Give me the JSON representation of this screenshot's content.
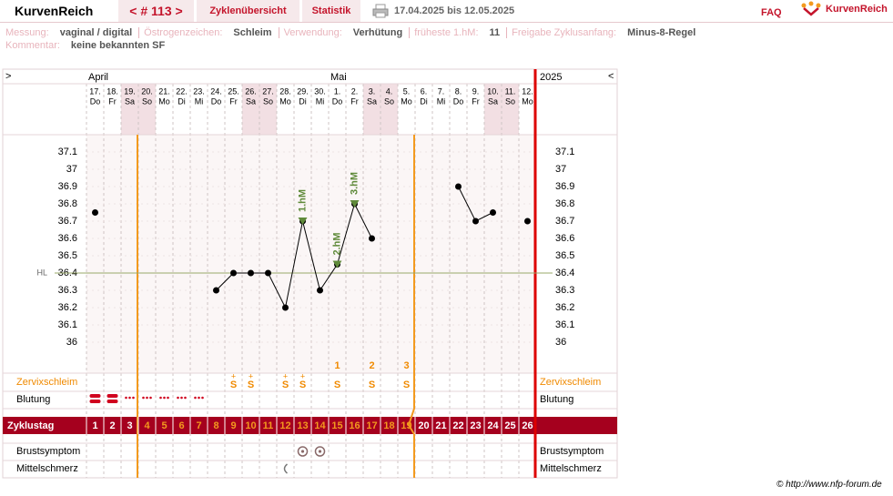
{
  "header": {
    "brand": "KurvenReich",
    "cycle_nav": "< # 113 >",
    "tabs": [
      "Zyklenübersicht",
      "Statistik"
    ],
    "date_range": "17.04.2025 bis 12.05.2025",
    "faq": "FAQ",
    "logo": "KurvenReich"
  },
  "info": {
    "items": [
      {
        "label": "Messung:",
        "value": "vaginal / digital"
      },
      {
        "label": "Östrogenzeichen:",
        "value": "Schleim"
      },
      {
        "label": "Verwendung:",
        "value": "Verhütung"
      },
      {
        "label": "früheste 1.hM:",
        "value": "11"
      },
      {
        "label": "Freigabe Zyklusanfang:",
        "value": "Minus-8-Regel"
      }
    ],
    "comment_label": "Kommentar:",
    "comment": "keine bekannten SF"
  },
  "chart_data": {
    "type": "line",
    "nav_left": ">",
    "nav_right": "<",
    "year": "2025",
    "months": [
      "April",
      null,
      null,
      null,
      null,
      null,
      null,
      null,
      null,
      null,
      null,
      null,
      null,
      null,
      "Mai",
      null,
      null,
      null,
      null,
      null,
      null,
      null,
      null,
      null,
      null,
      null
    ],
    "categories": [
      "17.",
      "18.",
      "19.",
      "20.",
      "21.",
      "22.",
      "23.",
      "24.",
      "25.",
      "26.",
      "27.",
      "28.",
      "29.",
      "30.",
      "1.",
      "2.",
      "3.",
      "4.",
      "5.",
      "6.",
      "7.",
      "8.",
      "9.",
      "10.",
      "11.",
      "12."
    ],
    "weekdays": [
      "Do",
      "Fr",
      "Sa",
      "So",
      "Mo",
      "Di",
      "Mi",
      "Do",
      "Fr",
      "Sa",
      "So",
      "Mo",
      "Di",
      "Mi",
      "Do",
      "Fr",
      "Sa",
      "So",
      "Mo",
      "Di",
      "Mi",
      "Do",
      "Fr",
      "Sa",
      "So",
      "Mo"
    ],
    "weekend": [
      false,
      false,
      true,
      true,
      false,
      false,
      false,
      false,
      false,
      true,
      true,
      false,
      false,
      false,
      false,
      false,
      true,
      true,
      false,
      false,
      false,
      false,
      false,
      true,
      true,
      false
    ],
    "values": [
      36.75,
      null,
      null,
      null,
      null,
      null,
      null,
      36.3,
      36.4,
      36.4,
      36.4,
      36.2,
      36.7,
      36.3,
      36.45,
      36.8,
      36.6,
      null,
      null,
      null,
      null,
      36.9,
      36.7,
      36.75,
      null,
      36.7
    ],
    "color": "#000000",
    "ylim": [
      35.9,
      37.2
    ],
    "yticks": [
      36,
      36.1,
      36.2,
      36.3,
      36.4,
      36.5,
      36.6,
      36.7,
      36.8,
      36.9,
      37,
      37.1
    ],
    "coverline": {
      "label": "HL",
      "value": 36.4,
      "color": "#9aa86a"
    },
    "annotations": [
      {
        "text": "1.hM",
        "index": 12
      },
      {
        "text": "2.hM",
        "index": 14
      },
      {
        "text": "3.hM",
        "index": 15
      }
    ],
    "annotation_color": "#5f8a3a",
    "rows": {
      "cervix": "Zervixschleim",
      "bleeding": "Blutung",
      "cycle_day": "Zyklustag",
      "breast": "Brustsymptom",
      "mittelschmerz": "Mittelschmerz"
    },
    "peak_count": [
      null,
      null,
      null,
      null,
      null,
      null,
      null,
      null,
      null,
      null,
      null,
      null,
      null,
      null,
      1,
      null,
      2,
      null,
      3,
      null,
      null,
      null,
      null,
      null,
      null,
      null
    ],
    "cervix_plus": [
      null,
      null,
      null,
      null,
      null,
      null,
      null,
      null,
      "+",
      "+",
      null,
      "+",
      "+",
      null,
      null,
      null,
      null,
      null,
      null,
      null,
      null,
      null,
      null,
      null,
      null,
      null
    ],
    "cervix": [
      null,
      null,
      null,
      null,
      null,
      null,
      null,
      null,
      "S",
      "S",
      null,
      "S",
      "S",
      null,
      "S",
      null,
      "S",
      null,
      "S",
      null,
      null,
      null,
      null,
      null,
      null,
      null
    ],
    "bleeding": [
      2,
      2,
      1,
      1,
      1,
      1,
      1,
      null,
      null,
      null,
      null,
      null,
      null,
      null,
      null,
      null,
      null,
      null,
      null,
      null,
      null,
      null,
      null,
      null,
      null,
      null
    ],
    "cycle_days": [
      1,
      2,
      3,
      4,
      5,
      6,
      7,
      8,
      9,
      10,
      11,
      12,
      13,
      14,
      15,
      16,
      17,
      18,
      19,
      20,
      21,
      22,
      23,
      24,
      25,
      26
    ],
    "cycle_day_colors": [
      "#ffffff",
      "#ffffff",
      "#ffffff",
      "#f39a1e",
      "#f39a1e",
      "#f39a1e",
      "#f39a1e",
      "#f39a1e",
      "#f39a1e",
      "#f39a1e",
      "#f39a1e",
      "#f39a1e",
      "#f39a1e",
      "#f39a1e",
      "#f39a1e",
      "#f39a1e",
      "#f39a1e",
      "#f39a1e",
      "#f39a1e",
      "#ffffff",
      "#ffffff",
      "#ffffff",
      "#ffffff",
      "#ffffff",
      "#ffffff",
      "#ffffff"
    ],
    "breast": [
      false,
      false,
      false,
      false,
      false,
      false,
      false,
      false,
      false,
      false,
      false,
      false,
      true,
      true,
      false,
      false,
      false,
      false,
      false,
      false,
      false,
      false,
      false,
      false,
      false,
      false
    ],
    "mittelschmerz": [
      false,
      false,
      false,
      false,
      false,
      false,
      false,
      false,
      false,
      false,
      false,
      true,
      false,
      false,
      false,
      false,
      false,
      false,
      false,
      false,
      false,
      false,
      false,
      false,
      false,
      false
    ]
  },
  "footer": "© http://www.nfp-forum.de"
}
